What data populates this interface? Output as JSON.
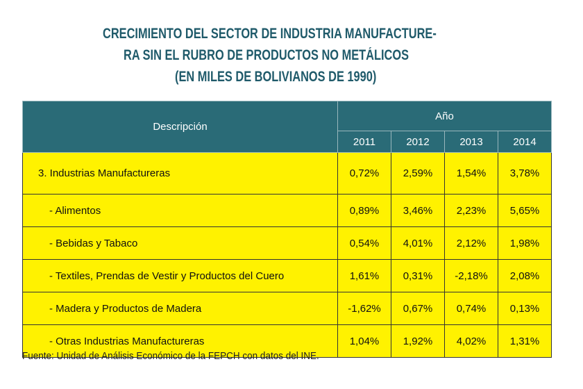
{
  "title": {
    "line1": "CRECIMIENTO DEL SECTOR DE INDUSTRIA MANUFACTURE-",
    "line2": "RA SIN EL RUBRO DE PRODUCTOS NO METÁLICOS",
    "line3": "(EN MILES DE BOLIVIANOS DE 1990)"
  },
  "table": {
    "header": {
      "description": "Descripción",
      "year_group": "Año",
      "years": [
        "2011",
        "2012",
        "2013",
        "2014"
      ]
    },
    "rows": [
      {
        "label": "3. Industrias Manufactureras",
        "values": [
          "0,72%",
          "2,59%",
          "1,54%",
          "3,78%"
        ]
      },
      {
        "label": "- Alimentos",
        "values": [
          "0,89%",
          "3,46%",
          "2,23%",
          "5,65%"
        ]
      },
      {
        "label": "- Bebidas y Tabaco",
        "values": [
          "0,54%",
          "4,01%",
          "2,12%",
          "1,98%"
        ]
      },
      {
        "label": "- Textiles, Prendas de Vestir y Productos del Cuero",
        "values": [
          "1,61%",
          "0,31%",
          "-2,18%",
          "2,08%"
        ]
      },
      {
        "label": "- Madera y Productos de Madera",
        "values": [
          "-1,62%",
          "0,67%",
          "0,74%",
          "0,13%"
        ]
      },
      {
        "label": "- Otras Industrias Manufactureras",
        "values": [
          "1,04%",
          "1,92%",
          "4,02%",
          "1,31%"
        ]
      }
    ]
  },
  "source": "Fuente: Unidad de Análisis Económico de la FEPCH con datos del INE.",
  "colors": {
    "title": "#1f5a6a",
    "header_bg": "#2a6b77",
    "row_bg": "#fff200"
  }
}
